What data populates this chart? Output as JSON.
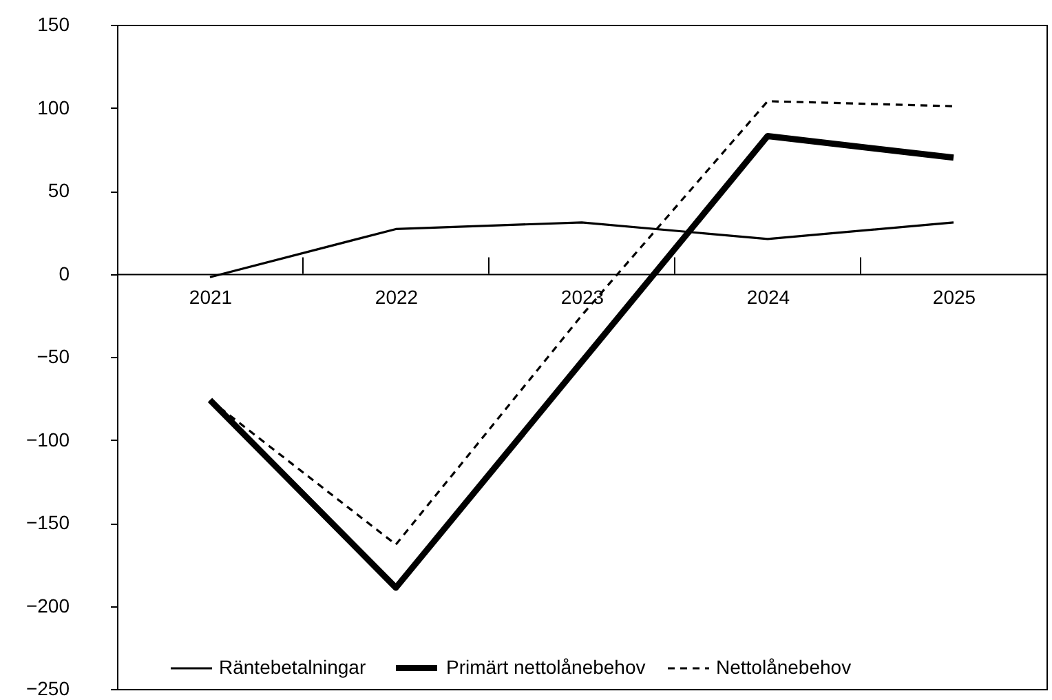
{
  "chart_data": {
    "type": "line",
    "categories": [
      "2021",
      "2022",
      "2023",
      "2024",
      "2025"
    ],
    "series": [
      {
        "name": "Räntebetalningar",
        "color": "#000000",
        "line_style": "solid",
        "values": [
          -2,
          27,
          31,
          21,
          31
        ]
      },
      {
        "name": "Primärt nettolånebehov",
        "color": "#000000",
        "line_style": "solid",
        "values": [
          -76,
          -189,
          -53,
          83,
          70
        ]
      },
      {
        "name": "Nettolånebehov",
        "color": "#000000",
        "line_style": "dashed",
        "values": [
          -76,
          -163,
          -25,
          104,
          101
        ]
      }
    ],
    "ylim": [
      -250,
      150
    ],
    "yticks": [
      -250,
      -200,
      -150,
      -100,
      -50,
      0,
      50,
      100,
      150
    ],
    "grid": false,
    "legend": "bottom",
    "marker": "none"
  }
}
